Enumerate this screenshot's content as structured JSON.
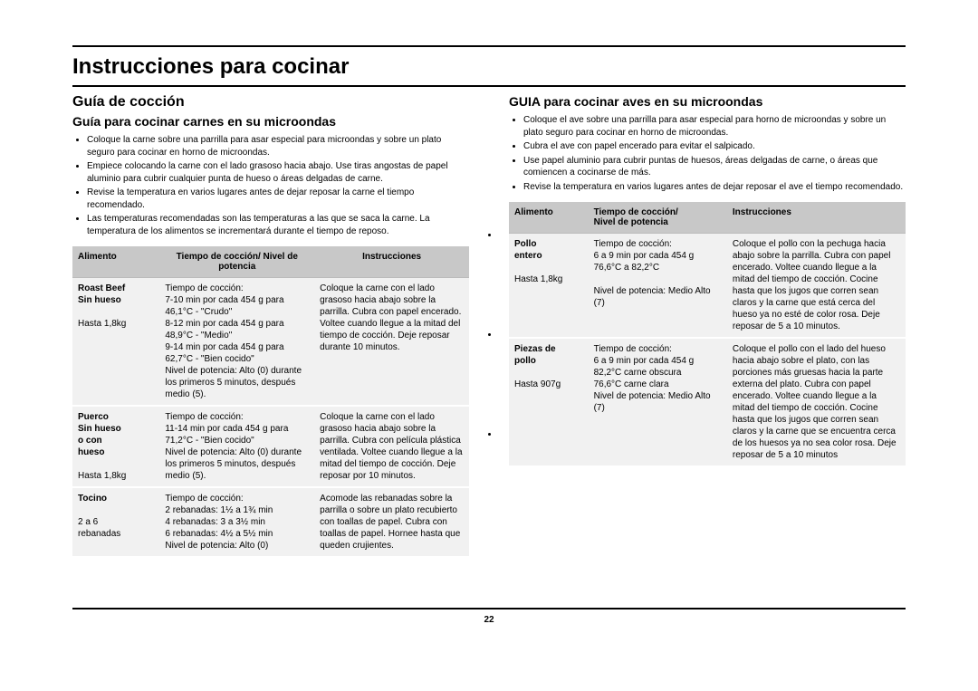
{
  "page_number": "22",
  "title": "Instrucciones para cocinar",
  "left": {
    "h2": "Guía de cocción",
    "h3": "Guía para cocinar carnes en su microondas",
    "bullets": [
      "Coloque la carne sobre una parrilla para asar especial para microondas y sobre un plato seguro para cocinar en horno de microondas.",
      "Empiece colocando la carne con el lado grasoso hacia abajo. Use tiras angostas de papel aluminio para cubrir cualquier punta de hueso o áreas delgadas de carne.",
      "Revise la temperatura en varios lugares antes de dejar reposar la carne el tiempo recomendado.",
      "Las temperaturas recomendadas son las temperaturas a las que se saca la carne. La temperatura de los alimentos se incrementará durante el tiempo de reposo."
    ],
    "table": {
      "headers": [
        "Alimento",
        "Tiempo de cocción/ Nivel de potencia",
        "Instrucciones"
      ],
      "rows": [
        {
          "food": "Roast Beef\nSin hueso\n\nHasta 1,8kg",
          "time": "Tiempo de cocción:\n7-10 min por cada 454 g para 46,1°C - \"Crudo\"\n8-12 min por cada 454 g para 48,9°C - \"Medio\"\n9-14 min por cada 454 g para 62,7°C - \"Bien cocido\"\nNivel de potencia: Alto (0) durante los primeros 5 minutos, después medio (5).",
          "instr": "Coloque la carne con el lado grasoso hacia abajo sobre la parrilla. Cubra con papel encerado. Voltee cuando llegue a la mitad del tiempo de cocción. Deje reposar durante 10 minutos."
        },
        {
          "food": "Puerco\nSin hueso\no con\nhueso\n\nHasta 1,8kg",
          "time": "Tiempo de cocción:\n11-14 min por cada 454 g para 71,2°C - \"Bien cocido\"\nNivel de potencia: Alto (0) durante los primeros 5 minutos, después medio (5).",
          "instr": "Coloque la carne con el lado grasoso hacia abajo sobre la parrilla. Cubra con película plástica ventilada. Voltee cuando llegue a la mitad del tiempo de cocción. Deje reposar por 10 minutos."
        },
        {
          "food": "Tocino\n\n2 a 6\nrebanadas",
          "time": "Tiempo de cocción:\n2 rebanadas: 1½ a 1¾ min\n4 rebanadas: 3 a 3½ min\n6 rebanadas: 4½ a 5½ min\nNivel de potencia: Alto (0)",
          "instr": "Acomode las rebanadas sobre la parrilla o sobre un plato recubierto con toallas de papel. Cubra con toallas de papel. Hornee hasta que queden crujientes."
        }
      ]
    }
  },
  "right": {
    "h3": "GUIA para cocinar aves en su microondas",
    "bullets": [
      "Coloque el ave sobre una parrilla para asar especial para horno de microondas y sobre un plato seguro para cocinar en horno de microondas.",
      "Cubra el ave con papel encerado para evitar el salpicado.",
      "Use papel aluminio para cubrir puntas de huesos, áreas delgadas de carne, o áreas que comiencen a cocinarse de más.",
      "Revise la temperatura en varios lugares antes de dejar reposar el ave el tiempo recomendado."
    ],
    "table": {
      "headers": [
        "Alimento",
        "Tiempo de cocción/\nNivel de potencia",
        "Instrucciones"
      ],
      "rows": [
        {
          "food": "Pollo\nentero\n\nHasta 1,8kg",
          "time": "Tiempo de cocción:\n6 a 9 min por cada 454 g\n76,6°C a 82,2°C\n\nNivel de potencia: Medio Alto (7)",
          "instr": "Coloque el pollo con la pechuga hacia abajo sobre la parrilla. Cubra con papel encerado. Voltee cuando llegue a la mitad del tiempo de cocción. Cocine hasta que los jugos que corren sean claros y la carne que está cerca del hueso ya no esté de color rosa. Deje reposar de 5 a 10 minutos."
        },
        {
          "food": "Piezas de\npollo\n\nHasta 907g",
          "time": "Tiempo de cocción:\n6 a 9 min por cada 454 g\n82,2°C carne obscura\n76,6°C carne clara\nNivel de potencia: Medio Alto (7)",
          "instr": "Coloque el pollo con el lado del hueso hacia abajo sobre el plato, con las porciones más gruesas hacia la parte externa del plato. Cubra con papel encerado. Voltee cuando llegue a la mitad del tiempo de cocción. Cocine hasta que los jugos que corren sean claros y la carne que se encuentra cerca de los huesos ya no sea color rosa. Deje reposar de 5 a 10 minutos"
        }
      ]
    }
  }
}
